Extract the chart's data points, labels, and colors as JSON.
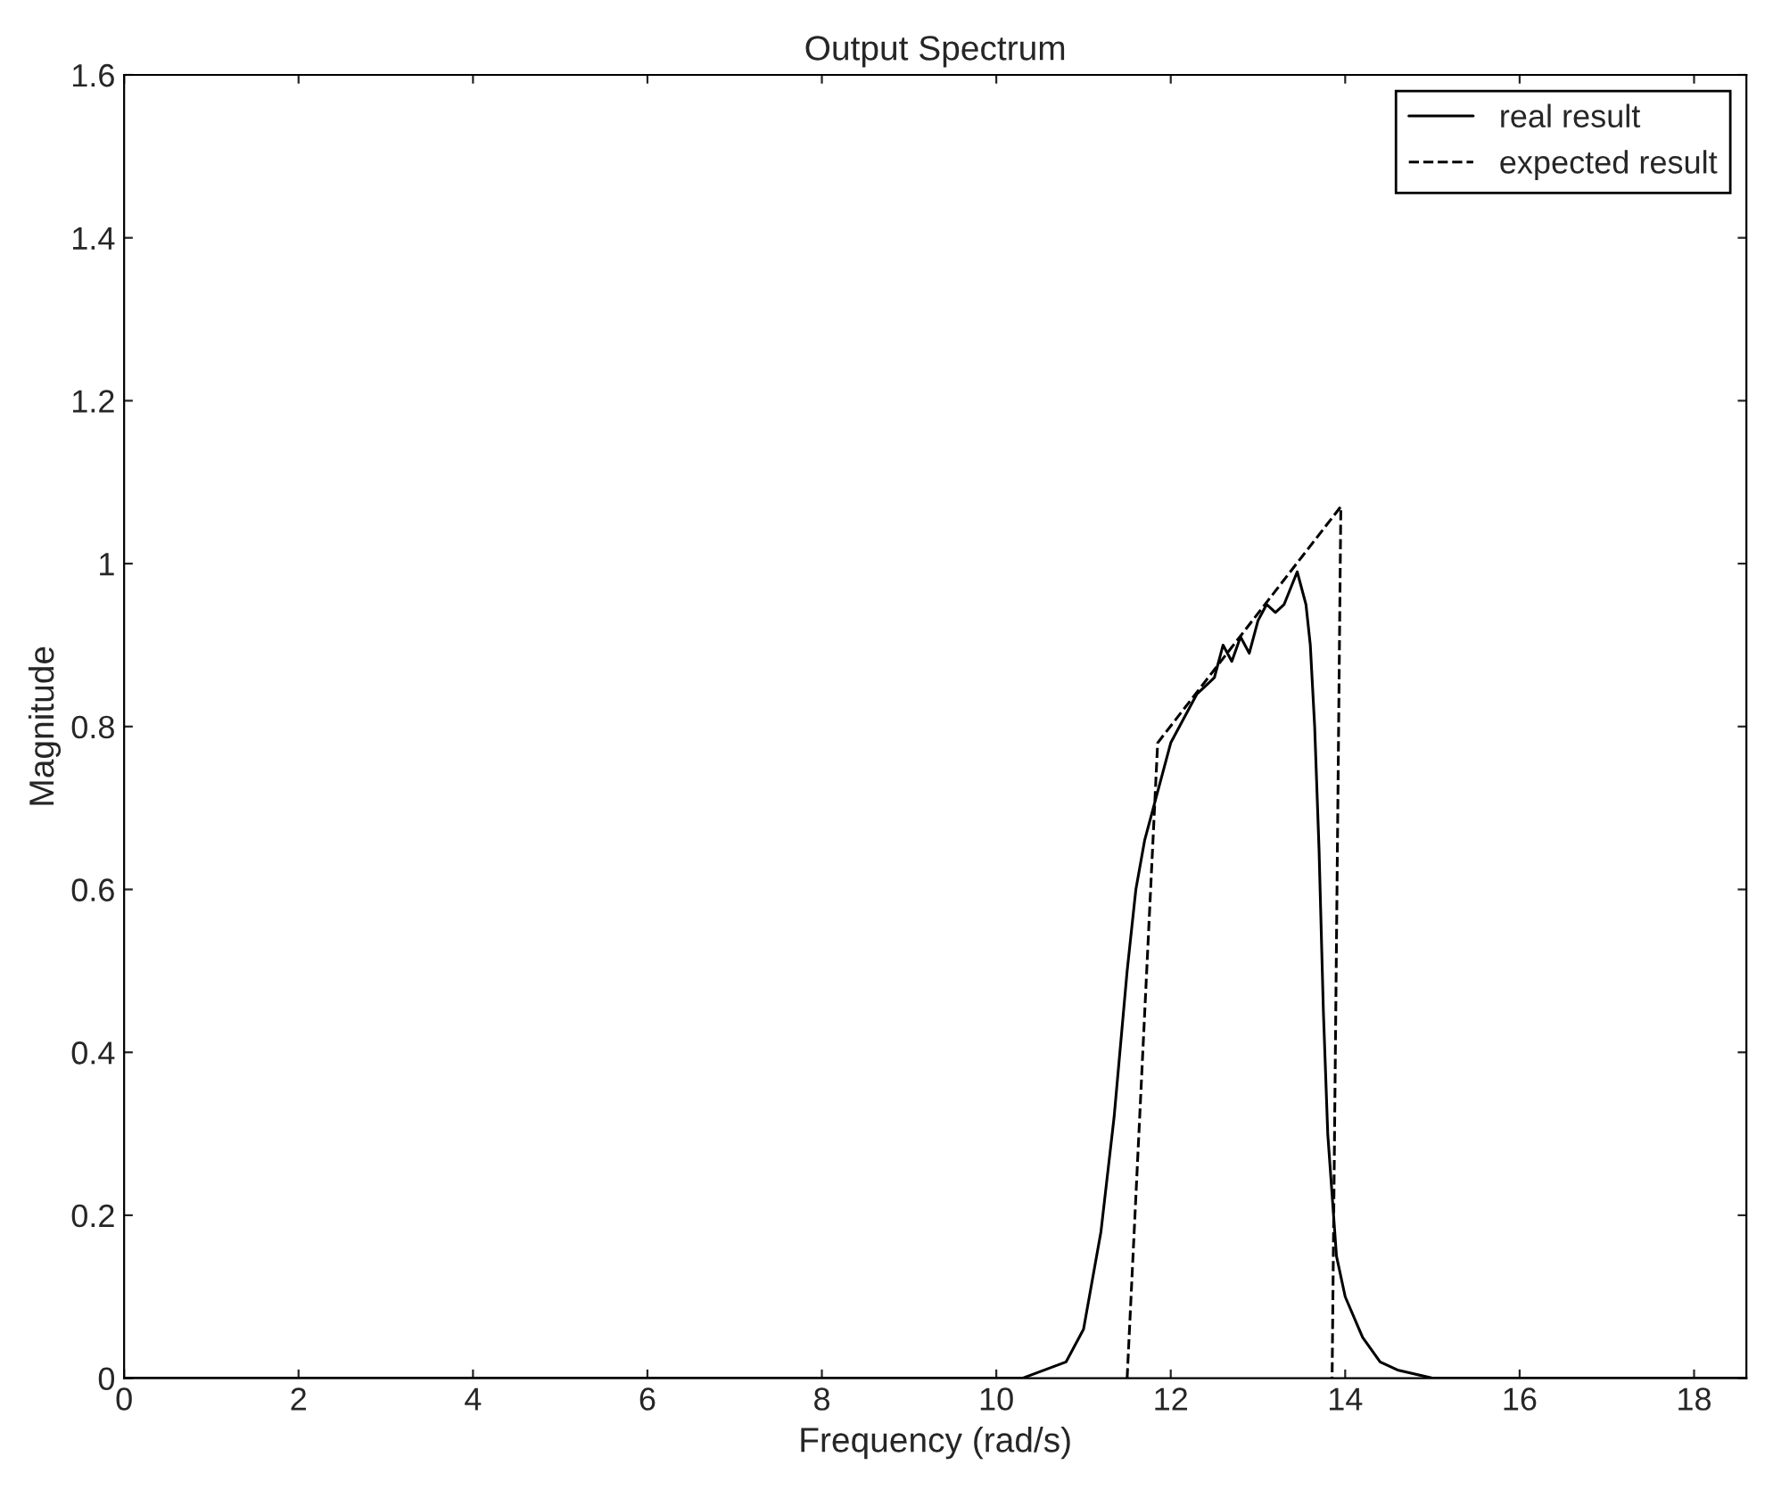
{
  "chart_data": {
    "type": "line",
    "title": "Output Spectrum",
    "xlabel": "Frequency (rad/s)",
    "ylabel": "Magnitude",
    "xlim": [
      0,
      18.6
    ],
    "ylim": [
      0,
      1.6
    ],
    "xticks": [
      0,
      2,
      4,
      6,
      8,
      10,
      12,
      14,
      16,
      18
    ],
    "yticks": [
      0,
      0.2,
      0.4,
      0.6,
      0.8,
      1,
      1.2,
      1.4,
      1.6
    ],
    "grid": false,
    "legend": "top right",
    "series": [
      {
        "name": "real result",
        "color": "#000000",
        "line_style": "solid",
        "x": [
          0,
          10.3,
          10.8,
          11.0,
          11.2,
          11.35,
          11.5,
          11.6,
          11.7,
          11.8,
          11.9,
          12.0,
          12.1,
          12.3,
          12.5,
          12.6,
          12.7,
          12.8,
          12.9,
          13.0,
          13.1,
          13.2,
          13.3,
          13.45,
          13.55,
          13.6,
          13.65,
          13.7,
          13.75,
          13.8,
          13.9,
          14.0,
          14.2,
          14.4,
          14.6,
          15.0,
          18.6
        ],
        "values": [
          0,
          0,
          0.02,
          0.06,
          0.18,
          0.32,
          0.5,
          0.6,
          0.66,
          0.7,
          0.74,
          0.78,
          0.8,
          0.84,
          0.86,
          0.9,
          0.88,
          0.91,
          0.89,
          0.93,
          0.95,
          0.94,
          0.95,
          0.99,
          0.95,
          0.9,
          0.8,
          0.65,
          0.45,
          0.3,
          0.15,
          0.1,
          0.05,
          0.02,
          0.01,
          0,
          0
        ]
      },
      {
        "name": "expected result",
        "color": "#000000",
        "line_style": "dashed",
        "x": [
          11.5,
          11.85,
          13.95,
          13.85
        ],
        "values": [
          0,
          0.78,
          1.07,
          0
        ]
      }
    ]
  }
}
